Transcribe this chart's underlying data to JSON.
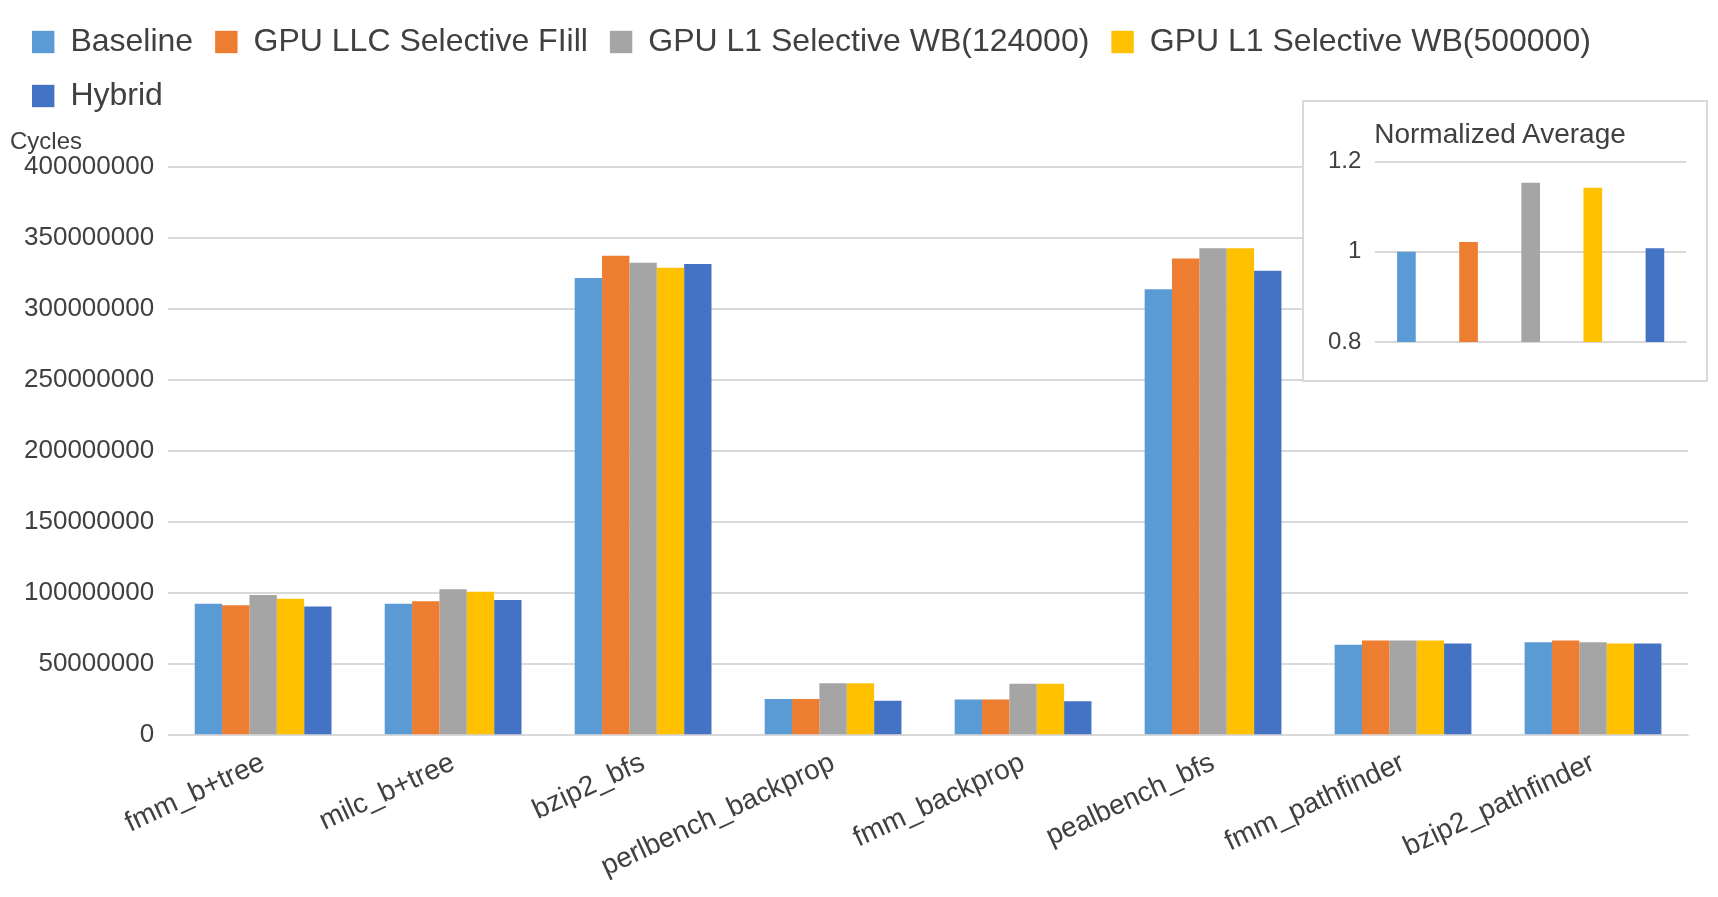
{
  "chart_data": [
    {
      "type": "bar",
      "ylabel": "Cycles",
      "categories": [
        "fmm_b+tree",
        "milc_b+tree",
        "bzip2_bfs",
        "perlbench_backprop",
        "fmm_backprop",
        "pealbench_bfs",
        "fmm_pathfinder",
        "bzip2_pathfinder"
      ],
      "series": [
        {
          "name": "Baseline",
          "color": "#5b9bd5",
          "values": [
            92500000,
            92500000,
            321800000,
            25500000,
            25200000,
            313800000,
            63800000,
            65400000
          ]
        },
        {
          "name": "GPU LLC Selective FIill",
          "color": "#ed7d31",
          "values": [
            91600000,
            94300000,
            337400000,
            25500000,
            25200000,
            335400000,
            66700000,
            66700000
          ]
        },
        {
          "name": "GPU L1 Selective WB(124000)",
          "color": "#a5a5a5",
          "values": [
            98800000,
            102800000,
            332500000,
            36600000,
            36200000,
            342700000,
            66700000,
            65400000
          ]
        },
        {
          "name": "GPU L1 Selective WB(500000)",
          "color": "#ffc000",
          "values": [
            96000000,
            101000000,
            329000000,
            36600000,
            36200000,
            342700000,
            66700000,
            64600000
          ]
        },
        {
          "name": "Hybrid",
          "color": "#4472c4",
          "values": [
            90700000,
            95200000,
            331600000,
            24400000,
            24000000,
            326800000,
            64600000,
            64600000
          ]
        }
      ],
      "ylim": [
        0,
        400000000
      ],
      "yticks": [
        0,
        50000000,
        100000000,
        150000000,
        200000000,
        250000000,
        300000000,
        350000000,
        400000000
      ],
      "grid": "y",
      "legend": "top"
    },
    {
      "type": "bar",
      "title": "Normalized Average",
      "categories": [
        null,
        null,
        null,
        null,
        null
      ],
      "values": [
        1.0,
        1.022,
        1.153,
        1.142,
        1.008
      ],
      "colors": [
        "#5b9bd5",
        "#ed7d31",
        "#a5a5a5",
        "#ffc000",
        "#4472c4"
      ],
      "ylim": [
        0.8,
        1.2
      ],
      "yticks": [
        0.8,
        1,
        1.2
      ],
      "grid": "y",
      "legend": false,
      "tick_labels": "y"
    }
  ]
}
